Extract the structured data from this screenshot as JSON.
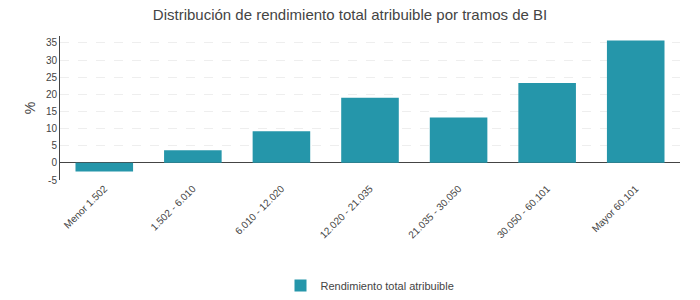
{
  "chart_data": {
    "type": "bar",
    "title": "Distribución de rendimiento total atribuible por tramos de BI",
    "categories": [
      "Menor 1.502",
      "1.502 - 6.010",
      "6.010 - 12.020",
      "12.020 - 21.035",
      "21.035 - 30.050",
      "30.050 - 60.101",
      "Mayor 60.101"
    ],
    "series": [
      {
        "name": "Rendimiento total atribuible",
        "color": "#2596AA",
        "values": [
          -2.5,
          3.7,
          9.2,
          19.0,
          13.2,
          23.3,
          35.7
        ]
      }
    ],
    "ylabel": "%",
    "ylim": [
      -5,
      37
    ],
    "yticks": [
      -5,
      0,
      5,
      10,
      15,
      20,
      25,
      30,
      35
    ],
    "grid": true,
    "legend": "bottom"
  }
}
